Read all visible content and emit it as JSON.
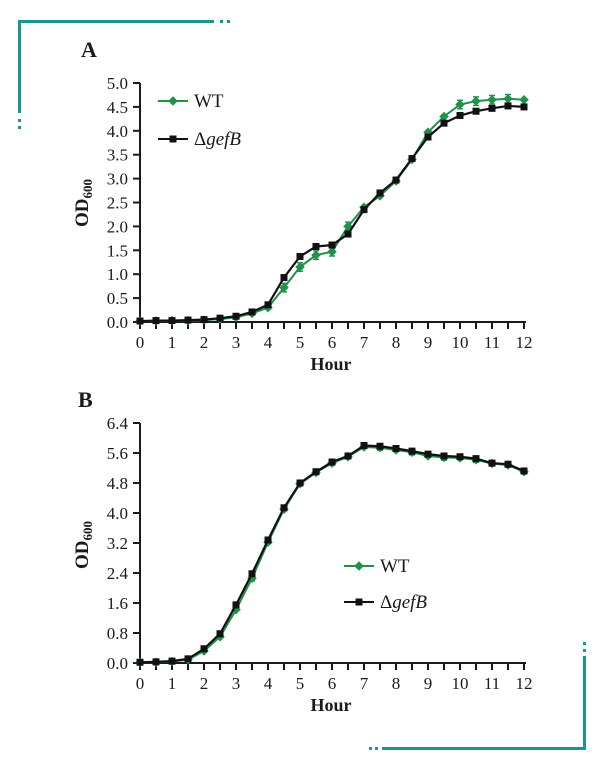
{
  "figure": {
    "accent_teal": "#189690",
    "wt_green": "#1f9148",
    "mutant_black": "#111111",
    "background": "#ffffff"
  },
  "chart_data": [
    {
      "id": "A",
      "type": "line",
      "panel_label": "A",
      "xlabel": "Hour",
      "ylabel_main": "OD",
      "ylabel_sub": "600",
      "xlim": [
        0,
        12
      ],
      "ylim": [
        0,
        5.0
      ],
      "xtick_labels": [
        "0",
        "1",
        "2",
        "3",
        "4",
        "5",
        "6",
        "7",
        "8",
        "9",
        "10",
        "11",
        "12"
      ],
      "ytick_labels": [
        "0.0",
        "0.5",
        "1.0",
        "1.5",
        "2.0",
        "2.5",
        "3.0",
        "3.5",
        "4.0",
        "4.5",
        "5.0"
      ],
      "grid": false,
      "legend_position": "inside-top-left",
      "x": [
        0,
        0.5,
        1,
        1.5,
        2,
        2.5,
        3,
        3.5,
        4,
        4.5,
        5,
        5.5,
        6,
        6.5,
        7,
        7.5,
        8,
        8.5,
        9,
        9.5,
        10,
        10.5,
        11,
        11.5,
        12
      ],
      "series": [
        {
          "name": "WT",
          "name_parts": [
            {
              "text": "WT",
              "italic": false
            }
          ],
          "color": "#1f9148",
          "marker": "diamond",
          "values": [
            0.02,
            0.02,
            0.03,
            0.03,
            0.04,
            0.06,
            0.1,
            0.18,
            0.3,
            0.72,
            1.15,
            1.4,
            1.47,
            2.0,
            2.4,
            2.64,
            2.95,
            3.4,
            3.97,
            4.3,
            4.55,
            4.62,
            4.65,
            4.67,
            4.65
          ],
          "error_hours": [
            4.5,
            5,
            5.5,
            6,
            6.5,
            10,
            10.5,
            11,
            11.5
          ],
          "error": 0.09
        },
        {
          "name": "ΔgefB",
          "name_parts": [
            {
              "text": "Δ",
              "italic": false
            },
            {
              "text": "gefB",
              "italic": true
            }
          ],
          "color": "#111111",
          "marker": "square",
          "values": [
            0.02,
            0.03,
            0.03,
            0.04,
            0.05,
            0.08,
            0.12,
            0.21,
            0.36,
            0.93,
            1.37,
            1.58,
            1.61,
            1.84,
            2.35,
            2.7,
            2.97,
            3.42,
            3.87,
            4.16,
            4.32,
            4.41,
            4.47,
            4.52,
            4.5
          ],
          "error_hours": [],
          "error": 0
        }
      ]
    },
    {
      "id": "B",
      "type": "line",
      "panel_label": "B",
      "xlabel": "Hour",
      "ylabel_main": "OD",
      "ylabel_sub": "600",
      "xlim": [
        0,
        12
      ],
      "ylim": [
        0,
        6.4
      ],
      "xtick_labels": [
        "0",
        "1",
        "2",
        "3",
        "4",
        "5",
        "6",
        "7",
        "8",
        "9",
        "10",
        "11",
        "12"
      ],
      "ytick_labels": [
        "0.0",
        "0.8",
        "1.6",
        "2.4",
        "3.2",
        "4.0",
        "4.8",
        "5.6",
        "6.4"
      ],
      "grid": false,
      "legend_position": "inside-middle-right",
      "x": [
        0,
        0.5,
        1,
        1.5,
        2,
        2.5,
        3,
        3.5,
        4,
        4.5,
        5,
        5.5,
        6,
        6.5,
        7,
        7.5,
        8,
        8.5,
        9,
        9.5,
        10,
        10.5,
        11,
        11.5,
        12
      ],
      "series": [
        {
          "name": "WT",
          "name_parts": [
            {
              "text": "WT",
              "italic": false
            }
          ],
          "color": "#1f9148",
          "marker": "diamond",
          "values": [
            0.02,
            0.02,
            0.04,
            0.09,
            0.32,
            0.7,
            1.42,
            2.26,
            3.22,
            4.1,
            4.78,
            5.08,
            5.33,
            5.5,
            5.76,
            5.74,
            5.68,
            5.62,
            5.52,
            5.48,
            5.47,
            5.42,
            5.32,
            5.28,
            5.1
          ],
          "error_hours": [
            3.5,
            7.5,
            8.5,
            9.5,
            10.5
          ],
          "error": 0.07
        },
        {
          "name": "ΔgefB",
          "name_parts": [
            {
              "text": "Δ",
              "italic": false
            },
            {
              "text": "gefB",
              "italic": true
            }
          ],
          "color": "#111111",
          "marker": "square",
          "values": [
            0.02,
            0.03,
            0.05,
            0.11,
            0.38,
            0.78,
            1.55,
            2.38,
            3.28,
            4.14,
            4.8,
            5.1,
            5.36,
            5.52,
            5.8,
            5.78,
            5.72,
            5.65,
            5.57,
            5.52,
            5.5,
            5.45,
            5.33,
            5.3,
            5.12
          ],
          "error_hours": [
            7.5
          ],
          "error": 0.06
        }
      ]
    }
  ]
}
